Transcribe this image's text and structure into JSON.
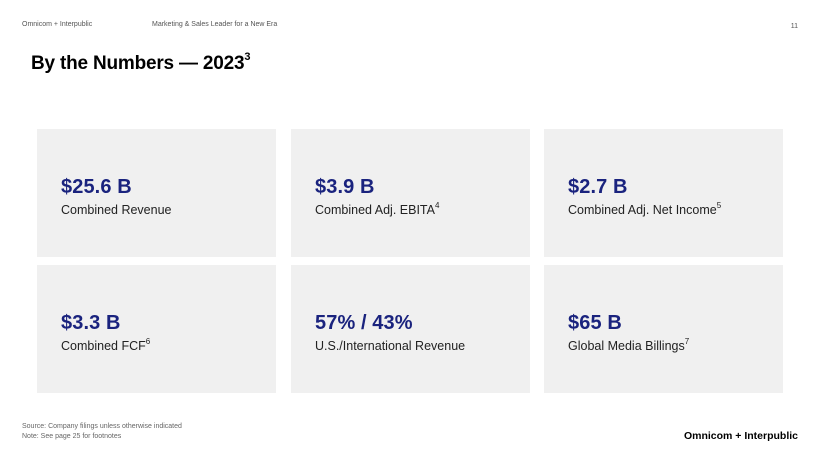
{
  "header": {
    "left": "Omnicom + Interpublic",
    "center": "Marketing & Sales Leader for a New Era",
    "page_number": "11"
  },
  "title": {
    "text": "By the Numbers — 2023",
    "footnote": "3"
  },
  "cards": [
    {
      "value": "$25.6 B",
      "label": "Combined Revenue",
      "footnote": ""
    },
    {
      "value": "$3.9 B",
      "label": "Combined Adj. EBITA",
      "footnote": "4"
    },
    {
      "value": "$2.7 B",
      "label": "Combined Adj. Net Income",
      "footnote": "5"
    },
    {
      "value": "$3.3 B",
      "label": "Combined FCF",
      "footnote": "6"
    },
    {
      "value": "57% / 43%",
      "label": "U.S./International Revenue",
      "footnote": ""
    },
    {
      "value": "$65 B",
      "label": "Global Media Billings",
      "footnote": "7"
    }
  ],
  "footer": {
    "source": "Source: Company filings unless otherwise indicated",
    "note": "Note: See page 25 for footnotes",
    "brand": "Omnicom + Interpublic"
  },
  "colors": {
    "value_text": "#1a237e",
    "card_background": "#f0f0f0"
  }
}
